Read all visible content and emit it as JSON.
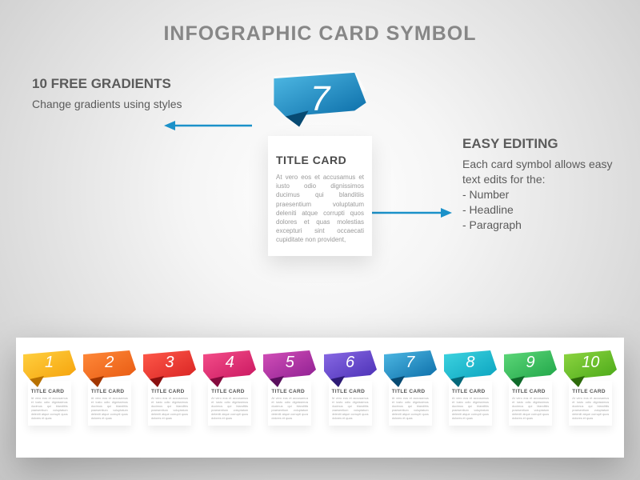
{
  "main_title": "INFOGRAPHIC CARD SYMBOL",
  "left": {
    "heading": "10 FREE GRADIENTS",
    "sub": "Change gradients using styles"
  },
  "right": {
    "heading": "EASY EDITING",
    "sub": "Each card symbol allows easy text edits for the:\n- Number\n- Headline\n- Paragraph"
  },
  "arrow_color": "#1b91c9",
  "hero": {
    "number": "7",
    "title": "TITLE CARD",
    "text": "At vero eos et accusamus et iusto odio dignissimos ducimus qui blanditiis praesentium voluptatum deleniti atque corrupti quos dolores et quas molestias excepturi sint occaecati cupiditate non provident,",
    "color_light": "#4fb9e4",
    "color_dark": "#0b6da8",
    "fold_color": "#074a72"
  },
  "cards": [
    {
      "n": "1",
      "title": "TITLE CARD",
      "light": "#ffd141",
      "dark": "#f5a20b",
      "fold": "#b87100"
    },
    {
      "n": "2",
      "title": "TITLE CARD",
      "light": "#ff8a3a",
      "dark": "#e85a12",
      "fold": "#a23600"
    },
    {
      "n": "3",
      "title": "TITLE CARD",
      "light": "#ff5a4a",
      "dark": "#d82323",
      "fold": "#8a0f0f"
    },
    {
      "n": "4",
      "title": "TITLE CARD",
      "light": "#f54f8a",
      "dark": "#c91760",
      "fold": "#850a3d"
    },
    {
      "n": "5",
      "title": "TITLE CARD",
      "light": "#d350b8",
      "dark": "#8e1f92",
      "fold": "#5a0f5d"
    },
    {
      "n": "6",
      "title": "TITLE CARD",
      "light": "#8a6be5",
      "dark": "#4a2fb5",
      "fold": "#2d1a75"
    },
    {
      "n": "7",
      "title": "TITLE CARD",
      "light": "#4fb9e4",
      "dark": "#0b6da8",
      "fold": "#074a72"
    },
    {
      "n": "8",
      "title": "TITLE CARD",
      "light": "#3fd4e0",
      "dark": "#0aa3bf",
      "fold": "#05687a"
    },
    {
      "n": "9",
      "title": "TITLE CARD",
      "light": "#5fd87a",
      "dark": "#1fa548",
      "fold": "#0f6a2a"
    },
    {
      "n": "10",
      "title": "TITLE CARD",
      "light": "#8fd642",
      "dark": "#4aa818",
      "fold": "#2d6a0a"
    }
  ],
  "mini_text": "At vero eos et accusamus et iusto odio dignissimos ducimus qui blanditiis praesentium voluptatum deleniti atque corrupti quos dolores et quas"
}
